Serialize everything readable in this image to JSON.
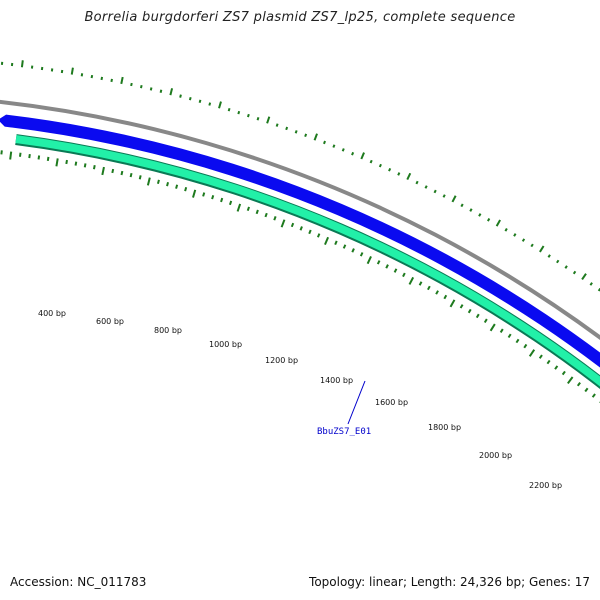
{
  "title": "Borrelia burgdorferi ZS7 plasmid ZS7_lp25, complete sequence",
  "footer": {
    "accession": "Accession: NC_011783",
    "summary": "Topology: linear; Length: 24,326 bp; Genes: 17"
  },
  "ruler": {
    "labels": [
      "400 bp",
      "600 bp",
      "800 bp",
      "1000 bp",
      "1200 bp",
      "1400 bp",
      "1600 bp",
      "1800 bp",
      "2000 bp",
      "2200 bp"
    ]
  },
  "gene_label": {
    "text": "BbuZS7_E01",
    "color": "#0000cc"
  },
  "colors": {
    "backbone": "#888888",
    "forward_feature": "#0a0af0",
    "reverse_feature": "#22f0a8",
    "reverse_feature_dark": "#0a7a55",
    "ticks": "#1e7a1e"
  }
}
